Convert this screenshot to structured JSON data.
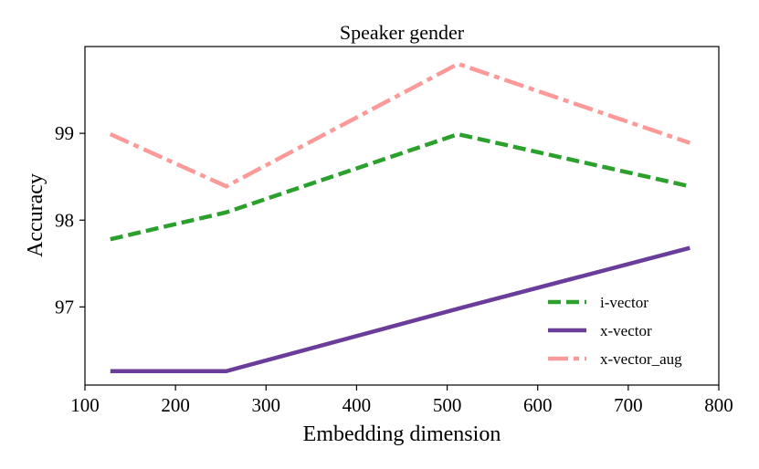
{
  "chart_data": {
    "type": "line",
    "title": "Speaker gender",
    "xlabel": "Embedding dimension",
    "ylabel": "Accuracy",
    "xlim": [
      100,
      800
    ],
    "ylim": [
      96.1,
      100.0
    ],
    "xticks": [
      100,
      200,
      300,
      400,
      500,
      600,
      700,
      800
    ],
    "yticks": [
      97,
      98,
      99
    ],
    "x": [
      128,
      256,
      512,
      768
    ],
    "grid": false,
    "legend_position": "lower-right",
    "series": [
      {
        "name": "i-vector",
        "values": [
          97.78,
          98.09,
          98.99,
          98.39
        ],
        "color": "#2ca02c",
        "dash": "dashed"
      },
      {
        "name": "x-vector",
        "values": [
          96.26,
          96.26,
          96.98,
          97.68
        ],
        "color": "#6a3d9a",
        "dash": "solid"
      },
      {
        "name": "x-vector_aug",
        "values": [
          98.99,
          98.39,
          99.8,
          98.89
        ],
        "color": "#fb9a99",
        "dash": "dashdot"
      }
    ]
  }
}
